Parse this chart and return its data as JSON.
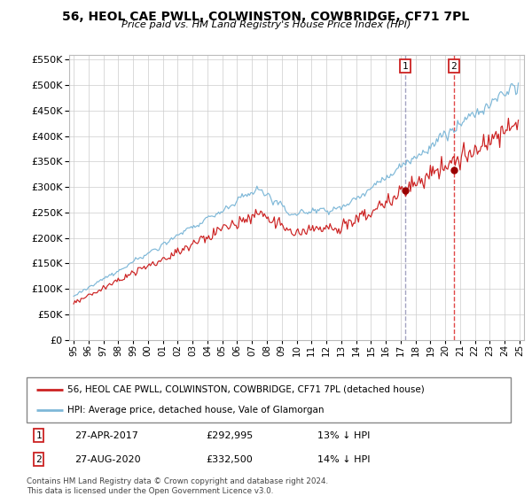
{
  "title": "56, HEOL CAE PWLL, COLWINSTON, COWBRIDGE, CF71 7PL",
  "subtitle": "Price paid vs. HM Land Registry's House Price Index (HPI)",
  "legend_line1": "56, HEOL CAE PWLL, COLWINSTON, COWBRIDGE, CF71 7PL (detached house)",
  "legend_line2": "HPI: Average price, detached house, Vale of Glamorgan",
  "transaction1_date": "27-APR-2017",
  "transaction1_price": "£292,995",
  "transaction1_hpi": "13% ↓ HPI",
  "transaction2_date": "27-AUG-2020",
  "transaction2_price": "£332,500",
  "transaction2_hpi": "14% ↓ HPI",
  "footer": "Contains HM Land Registry data © Crown copyright and database right 2024.\nThis data is licensed under the Open Government Licence v3.0.",
  "hpi_color": "#7eb8d8",
  "price_color": "#cc2222",
  "vline1_color": "#aaaacc",
  "vline2_color": "#dd4444",
  "dot_color": "#990000",
  "ylim_min": 0,
  "ylim_max": 560000,
  "t1_year": 2017.29,
  "t2_year": 2020.58,
  "t1_price": 292995,
  "t2_price": 332500
}
